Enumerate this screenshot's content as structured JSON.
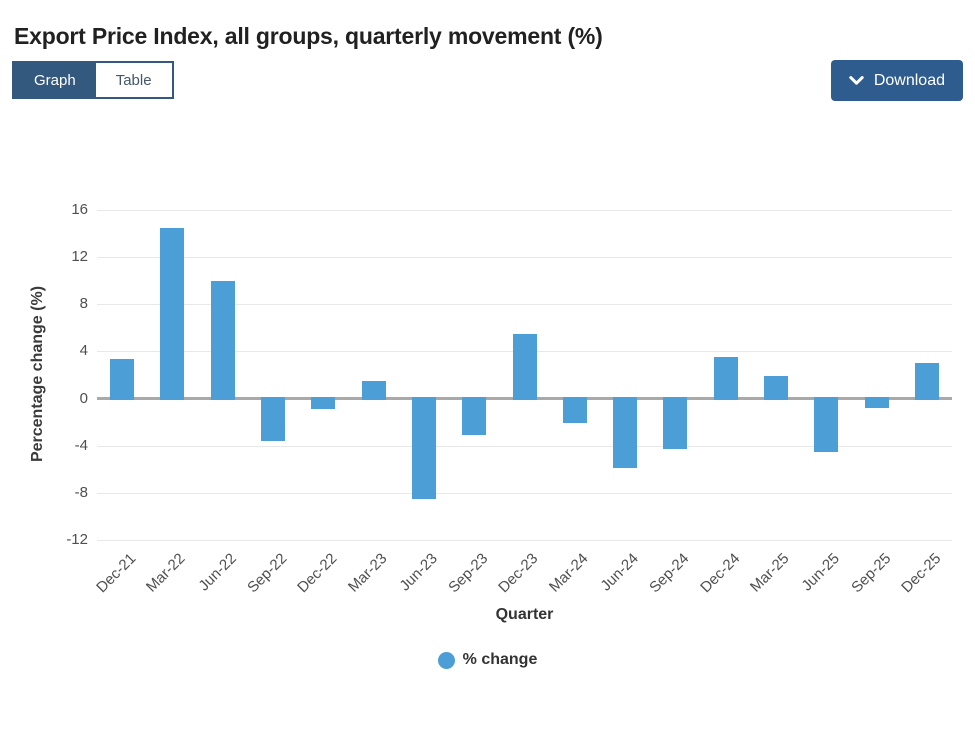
{
  "page": {
    "title": "Export Price Index, all groups, quarterly movement (%)"
  },
  "toolbar": {
    "view_toggle": [
      {
        "label": "Graph",
        "active": true
      },
      {
        "label": "Table",
        "active": false
      }
    ],
    "download": {
      "label": "Download",
      "icon": "chevron-down-icon"
    }
  },
  "colors": {
    "bar_blue": "#4b9ed6",
    "toggle_blue": "#33597f",
    "button_blue": "#2e5c8e",
    "gridline": "#e8e8e8",
    "zero_line": "#a9a9a9"
  },
  "chart_data": {
    "type": "bar",
    "title": "Export Price Index, all groups, quarterly movement (%)",
    "xlabel": "Quarter",
    "ylabel": "Percentage change (%)",
    "categories": [
      "Dec-21",
      "Mar-22",
      "Jun-22",
      "Sep-22",
      "Dec-22",
      "Mar-23",
      "Jun-23",
      "Sep-23",
      "Dec-23",
      "Mar-24",
      "Jun-24",
      "Sep-24",
      "Dec-24",
      "Mar-25",
      "Jun-25",
      "Sep-25",
      "Dec-25"
    ],
    "values": [
      3.4,
      14.5,
      10.0,
      -3.6,
      -0.9,
      1.5,
      -8.5,
      -3.1,
      5.5,
      -2.1,
      -5.9,
      -4.3,
      3.5,
      1.9,
      -4.5,
      -0.8,
      3.0
    ],
    "ylim": [
      -12,
      16
    ],
    "yticks": [
      16,
      12,
      8,
      4,
      0,
      -4,
      -8,
      -12
    ],
    "grid": true,
    "series_name": "% change",
    "legend": [
      {
        "label": "% change",
        "color": "#4b9ed6"
      }
    ],
    "legend_position": "bottom"
  }
}
